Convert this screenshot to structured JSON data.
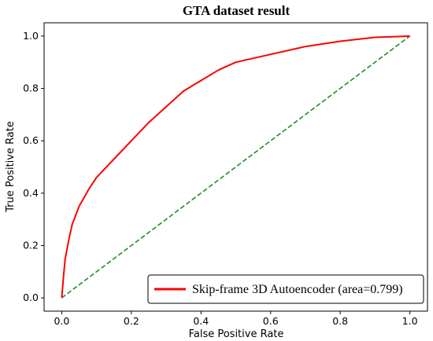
{
  "chart_data": {
    "type": "line",
    "title": "GTA dataset result",
    "xlabel": "False Positive Rate",
    "ylabel": "True Positive Rate",
    "xlim": [
      0.0,
      1.0
    ],
    "ylim": [
      0.0,
      1.0
    ],
    "x_ticks": [
      "0.0",
      "0.2",
      "0.4",
      "0.6",
      "0.8",
      "1.0"
    ],
    "y_ticks": [
      "0.0",
      "0.2",
      "0.4",
      "0.6",
      "0.8",
      "1.0"
    ],
    "grid": false,
    "legend_position": "bottom-right",
    "series": [
      {
        "name": "Skip-frame 3D Autoencoder (area=0.799)",
        "color": "#ff0000",
        "style": "solid",
        "x": [
          0.0,
          0.005,
          0.01,
          0.02,
          0.03,
          0.05,
          0.08,
          0.1,
          0.15,
          0.2,
          0.25,
          0.3,
          0.35,
          0.4,
          0.45,
          0.5,
          0.6,
          0.7,
          0.8,
          0.9,
          1.0
        ],
        "y": [
          0.0,
          0.08,
          0.15,
          0.22,
          0.28,
          0.35,
          0.42,
          0.46,
          0.53,
          0.6,
          0.67,
          0.73,
          0.79,
          0.83,
          0.87,
          0.9,
          0.93,
          0.96,
          0.98,
          0.995,
          1.0
        ]
      },
      {
        "name": "",
        "color": "#228b22",
        "style": "dashed",
        "x": [
          0.0,
          1.0
        ],
        "y": [
          0.0,
          1.0
        ]
      }
    ]
  }
}
